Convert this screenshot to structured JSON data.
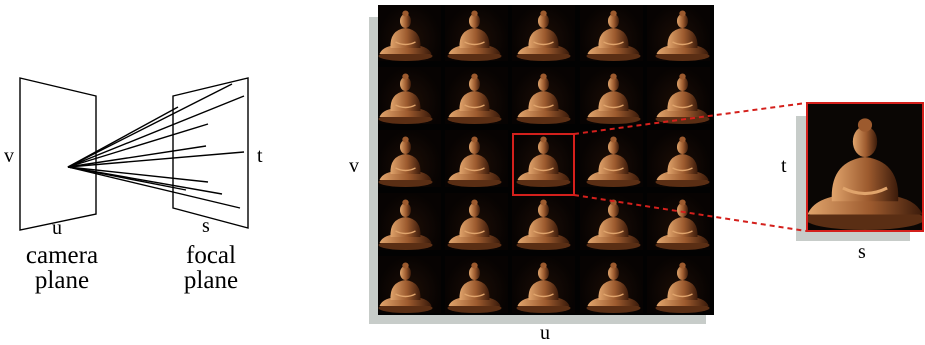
{
  "left_diagram": {
    "labels": {
      "v": "v",
      "u": "u",
      "s": "s",
      "t": "t",
      "camera_plane_line1": "camera",
      "camera_plane_line2": "plane",
      "focal_plane_line1": "focal",
      "focal_plane_line2": "plane"
    }
  },
  "light_field_grid": {
    "rows": 5,
    "cols": 5,
    "axis_labels": {
      "v": "v",
      "u": "u"
    },
    "selected_cell": {
      "row": 3,
      "col": 3
    }
  },
  "zoom_view": {
    "axis_labels": {
      "t": "t",
      "s": "s"
    }
  },
  "colors": {
    "highlight": "#d4201c",
    "shadow": "#c7ccc9",
    "ink": "#000000",
    "statue": "#9c5a2e",
    "statue_light": "#e0a46c"
  }
}
